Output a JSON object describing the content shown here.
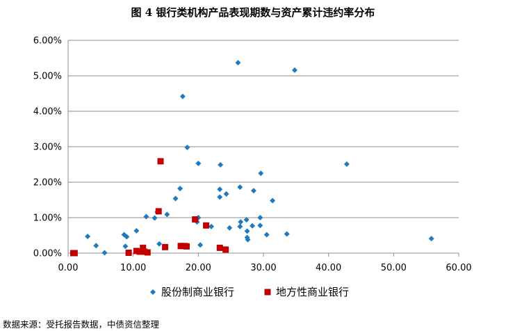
{
  "chart_data": {
    "type": "scatter",
    "title": "图 4  银行类机构产品表现期数与资产累计违约率分布",
    "xlabel": "",
    "ylabel": "",
    "xlim": [
      0,
      60
    ],
    "ylim": [
      0,
      0.06
    ],
    "x_ticks": [
      "0.00",
      "10.00",
      "20.00",
      "30.00",
      "40.00",
      "50.00",
      "60.00"
    ],
    "y_ticks": [
      "0.00%",
      "1.00%",
      "2.00%",
      "3.00%",
      "4.00%",
      "5.00%",
      "6.00%"
    ],
    "grid": "horizontal",
    "legend_position": "bottom",
    "series": [
      {
        "name": "股份制商业银行",
        "color": "#1F7BC1",
        "marker": "diamond",
        "points": [
          [
            3,
            0.0047
          ],
          [
            4.3,
            0.0021
          ],
          [
            5.6,
            0.0001
          ],
          [
            8.6,
            0.0052
          ],
          [
            8.8,
            0.0019
          ],
          [
            9,
            0.0046
          ],
          [
            10.5,
            0.0063
          ],
          [
            12,
            0.0103
          ],
          [
            13.3,
            0.0099
          ],
          [
            13.7,
            0.0116
          ],
          [
            14,
            0.0026
          ],
          [
            15.2,
            0.0109
          ],
          [
            16.5,
            0.0154
          ],
          [
            17.2,
            0.0182
          ],
          [
            17.6,
            0.0442
          ],
          [
            18.3,
            0.0298
          ],
          [
            19.8,
            0.0088
          ],
          [
            20,
            0.01
          ],
          [
            20,
            0.0253
          ],
          [
            20.3,
            0.0023
          ],
          [
            22,
            0.0075
          ],
          [
            23.3,
            0.0158
          ],
          [
            23.3,
            0.018
          ],
          [
            23.4,
            0.0249
          ],
          [
            24.3,
            0.0167
          ],
          [
            24.8,
            0.0071
          ],
          [
            26.1,
            0.0537
          ],
          [
            26.4,
            0.0075
          ],
          [
            26.5,
            0.0088
          ],
          [
            26.4,
            0.0186
          ],
          [
            27.4,
            0.0094
          ],
          [
            27.5,
            0.0062
          ],
          [
            27.5,
            0.0044
          ],
          [
            27.6,
            0.0038
          ],
          [
            28.3,
            0.0077
          ],
          [
            28.5,
            0.0176
          ],
          [
            29.5,
            0.01
          ],
          [
            29.5,
            0.0078
          ],
          [
            29.6,
            0.0225
          ],
          [
            30.5,
            0.0052
          ],
          [
            31.4,
            0.0148
          ],
          [
            33.6,
            0.0054
          ],
          [
            34.8,
            0.0516
          ],
          [
            42.8,
            0.0251
          ],
          [
            55.8,
            0.0041
          ]
        ]
      },
      {
        "name": "地方性商业银行",
        "color": "#C00000",
        "marker": "square",
        "points": [
          [
            0.8,
            0.0
          ],
          [
            1.0,
            0.0
          ],
          [
            9.3,
            0.0001
          ],
          [
            10.5,
            0.0006
          ],
          [
            11,
            0.0004
          ],
          [
            11.5,
            0.0015
          ],
          [
            11.7,
            0.0004
          ],
          [
            12.2,
            0.0002
          ],
          [
            13.9,
            0.0118
          ],
          [
            14.2,
            0.0259
          ],
          [
            14.9,
            0.0017
          ],
          [
            17.3,
            0.002
          ],
          [
            17.9,
            0.002
          ],
          [
            18.2,
            0.0019
          ],
          [
            19.5,
            0.0095
          ],
          [
            21.2,
            0.0078
          ],
          [
            23.3,
            0.0015
          ],
          [
            24.2,
            0.001
          ]
        ]
      }
    ]
  },
  "source_note": "数据来源：受托报告数据，中债资信整理"
}
